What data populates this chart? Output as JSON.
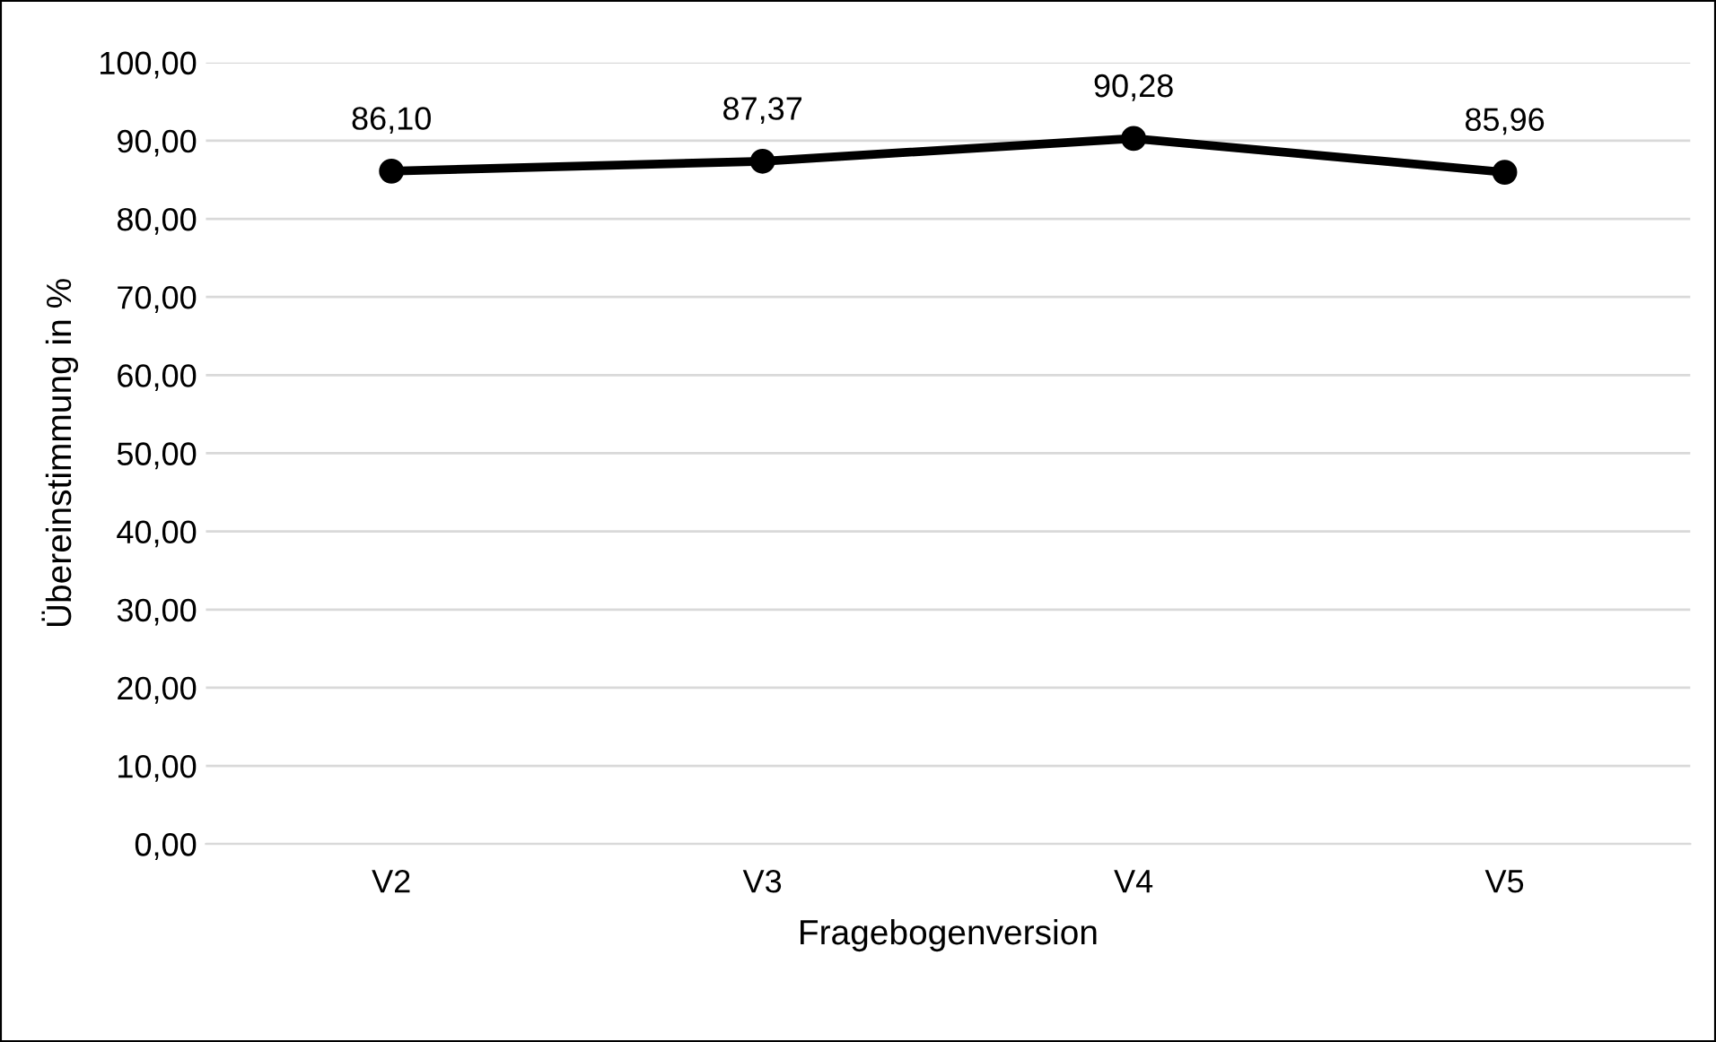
{
  "chart_data": {
    "type": "line",
    "xlabel": "Fragebogenversion",
    "ylabel": "Übereinstimmung in %",
    "categories": [
      "V2",
      "V3",
      "V4",
      "V5"
    ],
    "series": [
      {
        "color": "#000000",
        "values": [
          86.1,
          87.37,
          90.28,
          85.96
        ],
        "value_labels": [
          "86,10",
          "87,37",
          "90,28",
          "85,96"
        ]
      }
    ],
    "ylim": [
      0,
      100
    ],
    "yticks": [
      {
        "value": 0,
        "label": "0,00"
      },
      {
        "value": 10,
        "label": "10,00"
      },
      {
        "value": 20,
        "label": "20,00"
      },
      {
        "value": 30,
        "label": "30,00"
      },
      {
        "value": 40,
        "label": "40,00"
      },
      {
        "value": 50,
        "label": "50,00"
      },
      {
        "value": 60,
        "label": "60,00"
      },
      {
        "value": 70,
        "label": "70,00"
      },
      {
        "value": 80,
        "label": "80,00"
      },
      {
        "value": 90,
        "label": "90,00"
      },
      {
        "value": 100,
        "label": "100,00"
      }
    ],
    "grid": "y",
    "marker": "circle",
    "line_style": "solid",
    "legend": false
  }
}
